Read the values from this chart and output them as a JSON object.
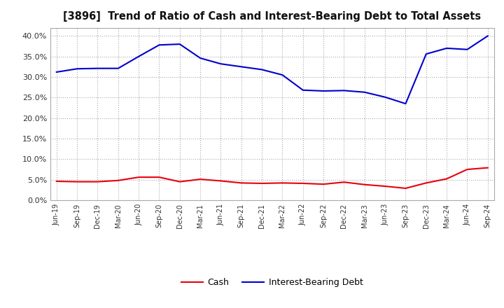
{
  "title": "[3896]  Trend of Ratio of Cash and Interest-Bearing Debt to Total Assets",
  "x_labels": [
    "Jun-19",
    "Sep-19",
    "Dec-19",
    "Mar-20",
    "Jun-20",
    "Sep-20",
    "Dec-20",
    "Mar-21",
    "Jun-21",
    "Sep-21",
    "Dec-21",
    "Mar-22",
    "Jun-22",
    "Sep-22",
    "Dec-22",
    "Mar-23",
    "Jun-23",
    "Sep-23",
    "Dec-23",
    "Mar-24",
    "Jun-24",
    "Sep-24"
  ],
  "cash": [
    4.6,
    4.5,
    4.5,
    4.8,
    5.6,
    5.6,
    4.5,
    5.1,
    4.7,
    4.2,
    4.1,
    4.2,
    4.1,
    3.9,
    4.4,
    3.8,
    3.4,
    2.9,
    4.2,
    5.2,
    7.5,
    7.9
  ],
  "interest_bearing_debt": [
    31.2,
    32.0,
    32.1,
    32.1,
    35.0,
    37.8,
    38.0,
    34.6,
    33.2,
    32.5,
    31.8,
    30.5,
    26.8,
    26.6,
    26.7,
    26.3,
    25.1,
    23.5,
    35.6,
    37.0,
    36.7,
    40.0
  ],
  "cash_color": "#e8000d",
  "debt_color": "#0000cc",
  "ylim": [
    0.0,
    42.0
  ],
  "yticks": [
    0.0,
    5.0,
    10.0,
    15.0,
    20.0,
    25.0,
    30.0,
    35.0,
    40.0
  ],
  "legend_cash": "Cash",
  "legend_debt": "Interest-Bearing Debt",
  "background_color": "#ffffff",
  "plot_bg_color": "#ffffff",
  "grid_color": "#aaaaaa"
}
